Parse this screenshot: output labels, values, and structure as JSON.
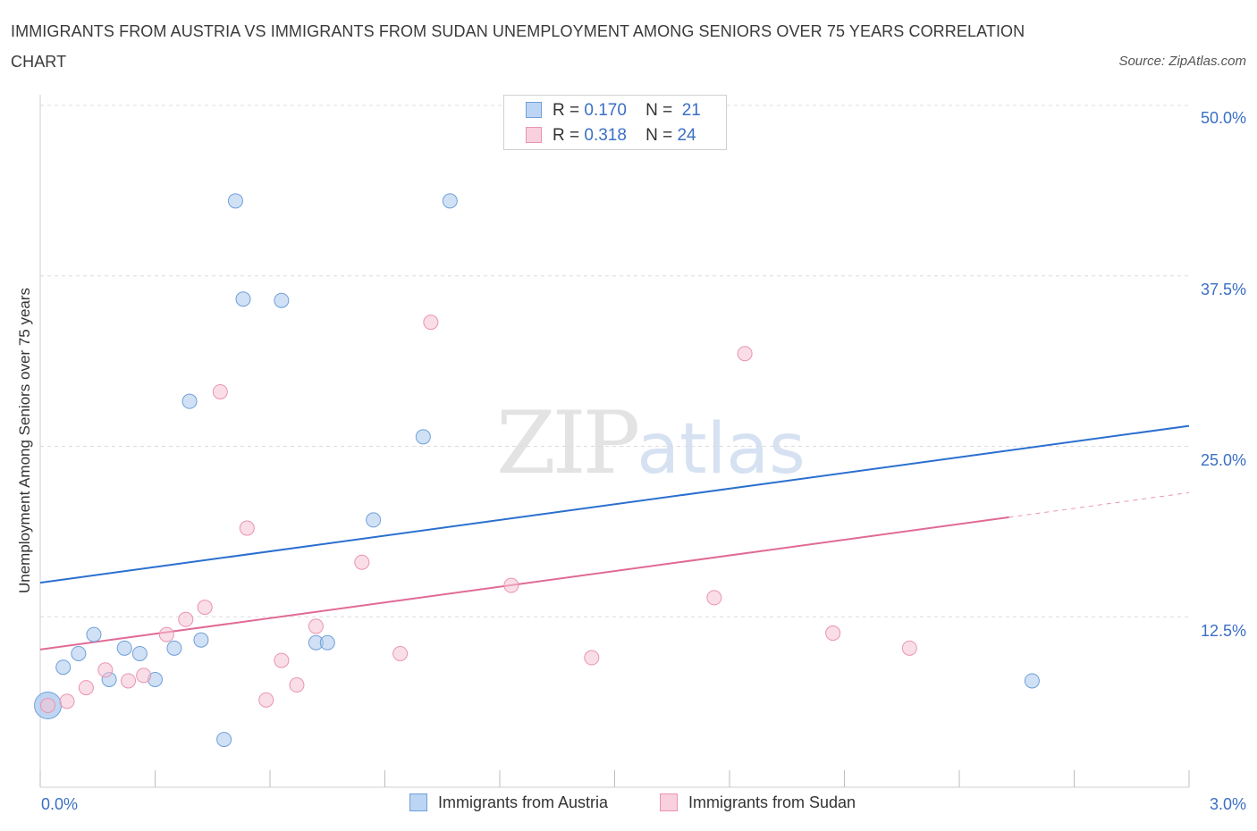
{
  "chart_data": {
    "type": "scatter",
    "title": "IMMIGRANTS FROM AUSTRIA VS IMMIGRANTS FROM SUDAN UNEMPLOYMENT AMONG SENIORS OVER 75 YEARS CORRELATION CHART",
    "source": "Source: ZipAtlas.com",
    "ylabel": "Unemployment Among Seniors over 75 years",
    "xlim": [
      0,
      3.0
    ],
    "ylim": [
      0,
      50
    ],
    "x_tick_labels": [
      "0.0%",
      "3.0%"
    ],
    "y_ticks": [
      12.5,
      25.0,
      37.5,
      50.0
    ],
    "y_tick_labels": [
      "12.5%",
      "25.0%",
      "37.5%",
      "50.0%"
    ],
    "watermark": {
      "main": "ZIP",
      "sub": "atlas"
    },
    "legend": [
      {
        "r_label": "R =",
        "r_value": "0.170",
        "n_label": "N =",
        "n_value": "21"
      },
      {
        "r_label": "R =",
        "r_value": "0.318",
        "n_label": "N =",
        "n_value": "24"
      }
    ],
    "series": [
      {
        "name": "Immigrants from Austria",
        "color": "#a9c8ef",
        "stroke": "#6f9fd8",
        "line_color": "#2b6fcf",
        "trend": {
          "x0": 0.0,
          "y0": 15.0,
          "x1": 3.0,
          "y1": 26.5
        },
        "points": [
          {
            "x": 0.02,
            "y": 6.0,
            "big": true
          },
          {
            "x": 0.06,
            "y": 8.8
          },
          {
            "x": 0.1,
            "y": 9.8
          },
          {
            "x": 0.14,
            "y": 11.2
          },
          {
            "x": 0.18,
            "y": 7.9
          },
          {
            "x": 0.22,
            "y": 10.2
          },
          {
            "x": 0.26,
            "y": 9.8
          },
          {
            "x": 0.3,
            "y": 7.9
          },
          {
            "x": 0.35,
            "y": 10.2
          },
          {
            "x": 0.39,
            "y": 28.3
          },
          {
            "x": 0.42,
            "y": 10.8
          },
          {
            "x": 0.48,
            "y": 3.5
          },
          {
            "x": 0.51,
            "y": 43.0
          },
          {
            "x": 0.53,
            "y": 35.8
          },
          {
            "x": 0.63,
            "y": 35.7
          },
          {
            "x": 0.72,
            "y": 10.6
          },
          {
            "x": 0.75,
            "y": 10.6
          },
          {
            "x": 0.87,
            "y": 19.6
          },
          {
            "x": 1.0,
            "y": 25.7
          },
          {
            "x": 1.07,
            "y": 43.0
          },
          {
            "x": 2.59,
            "y": 7.8
          }
        ]
      },
      {
        "name": "Immigrants from Sudan",
        "color": "#f6c3d3",
        "stroke": "#ea93b0",
        "line_color": "#e06a96",
        "trend": {
          "x0": 0.0,
          "y0": 10.1,
          "x1": 2.53,
          "y1": 19.8
        },
        "trend_dashed": {
          "x0": 2.53,
          "y0": 19.8,
          "x1": 3.0,
          "y1": 21.6
        },
        "points": [
          {
            "x": 0.02,
            "y": 6.0
          },
          {
            "x": 0.07,
            "y": 6.3
          },
          {
            "x": 0.12,
            "y": 7.3
          },
          {
            "x": 0.17,
            "y": 8.6
          },
          {
            "x": 0.23,
            "y": 7.8
          },
          {
            "x": 0.27,
            "y": 8.2
          },
          {
            "x": 0.33,
            "y": 11.2
          },
          {
            "x": 0.38,
            "y": 12.3
          },
          {
            "x": 0.43,
            "y": 13.2
          },
          {
            "x": 0.47,
            "y": 29.0
          },
          {
            "x": 0.54,
            "y": 19.0
          },
          {
            "x": 0.59,
            "y": 6.4
          },
          {
            "x": 0.63,
            "y": 9.3
          },
          {
            "x": 0.67,
            "y": 7.5
          },
          {
            "x": 0.72,
            "y": 11.8
          },
          {
            "x": 0.84,
            "y": 16.5
          },
          {
            "x": 0.94,
            "y": 9.8
          },
          {
            "x": 1.02,
            "y": 34.1
          },
          {
            "x": 1.23,
            "y": 14.8
          },
          {
            "x": 1.44,
            "y": 9.5
          },
          {
            "x": 1.76,
            "y": 13.9
          },
          {
            "x": 1.84,
            "y": 31.8
          },
          {
            "x": 2.07,
            "y": 11.3
          },
          {
            "x": 2.27,
            "y": 10.2
          }
        ]
      }
    ]
  }
}
